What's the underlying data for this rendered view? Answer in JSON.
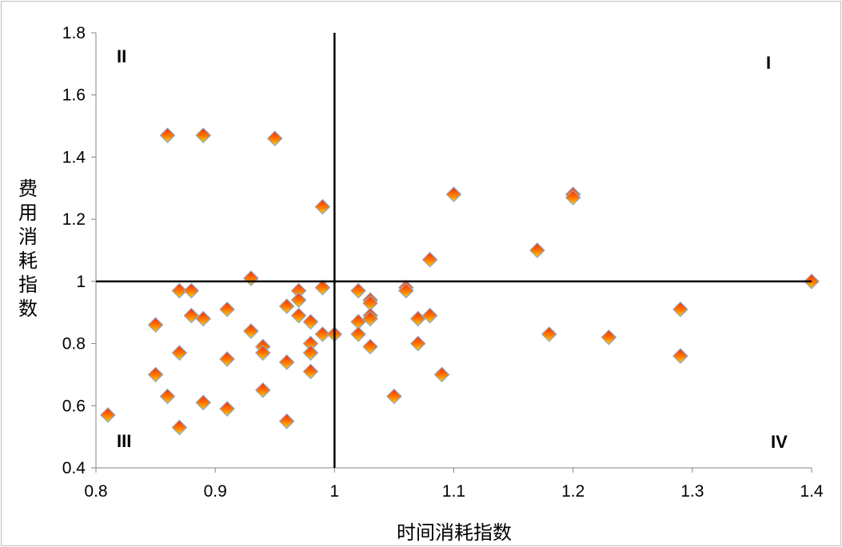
{
  "chart_data": {
    "type": "scatter",
    "title": "",
    "xlabel": "时间消耗指数",
    "ylabel": "费用消耗指数",
    "xlim": [
      0.8,
      1.4
    ],
    "ylim": [
      0.4,
      1.8
    ],
    "xticks": [
      "0.8",
      "0.9",
      "1",
      "1.1",
      "1.2",
      "1.3",
      "1.4"
    ],
    "yticks": [
      "0.4",
      "0.6",
      "0.8",
      "1",
      "1.2",
      "1.4",
      "1.6",
      "1.8"
    ],
    "reference_lines": {
      "x": 1,
      "y": 1
    },
    "quadrant_labels": {
      "q1": "I",
      "q2": "II",
      "q3": "III",
      "q4": "IV"
    },
    "colors": {
      "marker_top": "#ff2a00",
      "marker_bottom": "#ffd000",
      "marker_edge": "#8fa8c8",
      "axis": "#000000"
    },
    "points": [
      [
        0.86,
        1.47
      ],
      [
        0.89,
        1.47
      ],
      [
        0.95,
        1.46
      ],
      [
        0.99,
        1.24
      ],
      [
        1.1,
        1.28
      ],
      [
        1.2,
        1.28
      ],
      [
        1.2,
        1.27
      ],
      [
        1.17,
        1.1
      ],
      [
        1.08,
        1.07
      ],
      [
        0.93,
        1.01
      ],
      [
        1.4,
        1.0
      ],
      [
        0.87,
        0.97
      ],
      [
        0.88,
        0.97
      ],
      [
        0.97,
        0.97
      ],
      [
        0.99,
        0.98
      ],
      [
        1.02,
        0.97
      ],
      [
        1.06,
        0.98
      ],
      [
        1.06,
        0.97
      ],
      [
        0.97,
        0.94
      ],
      [
        0.96,
        0.92
      ],
      [
        1.03,
        0.94
      ],
      [
        1.03,
        0.93
      ],
      [
        0.91,
        0.91
      ],
      [
        1.29,
        0.91
      ],
      [
        0.88,
        0.89
      ],
      [
        0.89,
        0.88
      ],
      [
        0.97,
        0.89
      ],
      [
        0.98,
        0.87
      ],
      [
        1.02,
        0.87
      ],
      [
        1.03,
        0.89
      ],
      [
        1.03,
        0.88
      ],
      [
        1.07,
        0.88
      ],
      [
        1.08,
        0.89
      ],
      [
        0.85,
        0.86
      ],
      [
        0.93,
        0.84
      ],
      [
        0.99,
        0.83
      ],
      [
        1.0,
        0.83
      ],
      [
        1.02,
        0.83
      ],
      [
        1.18,
        0.83
      ],
      [
        1.23,
        0.82
      ],
      [
        0.94,
        0.79
      ],
      [
        0.94,
        0.77
      ],
      [
        0.98,
        0.8
      ],
      [
        0.98,
        0.77
      ],
      [
        1.03,
        0.79
      ],
      [
        1.07,
        0.8
      ],
      [
        0.87,
        0.77
      ],
      [
        1.29,
        0.76
      ],
      [
        0.91,
        0.75
      ],
      [
        0.96,
        0.74
      ],
      [
        0.98,
        0.71
      ],
      [
        0.85,
        0.7
      ],
      [
        1.09,
        0.7
      ],
      [
        0.94,
        0.65
      ],
      [
        0.86,
        0.63
      ],
      [
        1.05,
        0.63
      ],
      [
        0.89,
        0.61
      ],
      [
        0.91,
        0.59
      ],
      [
        0.81,
        0.57
      ],
      [
        0.96,
        0.55
      ],
      [
        0.87,
        0.53
      ]
    ]
  }
}
